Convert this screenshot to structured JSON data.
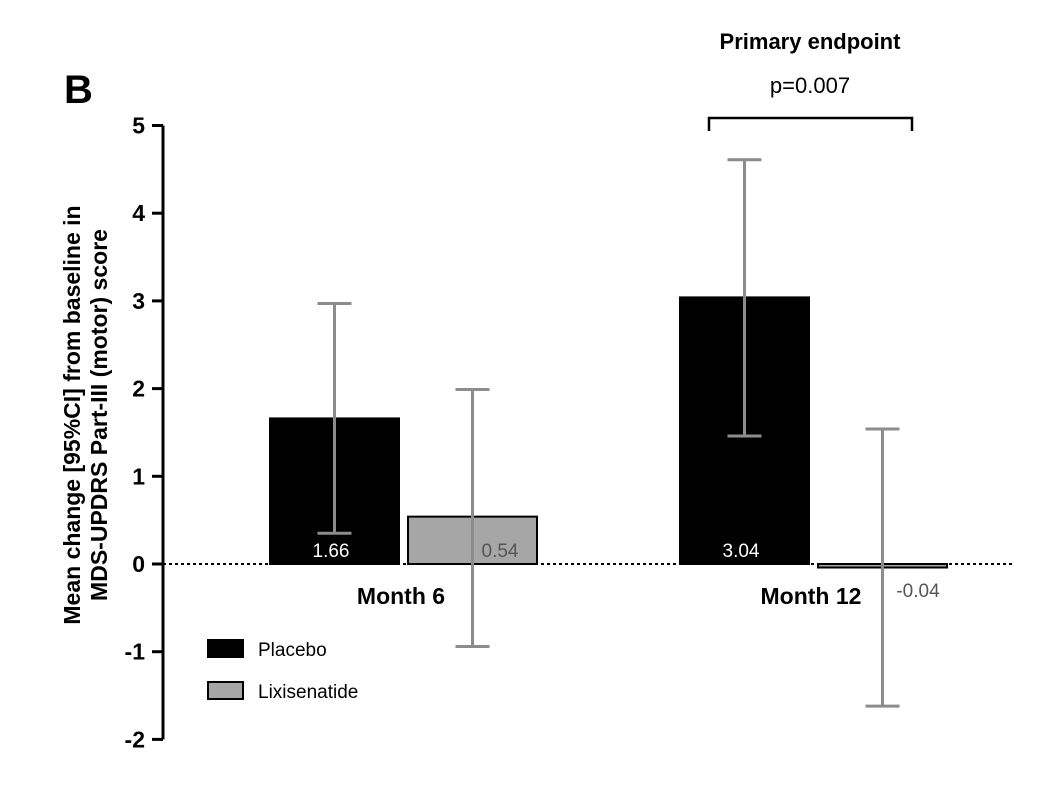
{
  "chart_data": {
    "type": "bar",
    "panel_label": "B",
    "ylabel_line1": "Mean change [95%CI] from baseline in",
    "ylabel_line2": "MDS-UPDRS Part-III (motor) score",
    "ylim": [
      -2,
      5
    ],
    "yticks": [
      5,
      4,
      3,
      2,
      1,
      0,
      -1,
      -2
    ],
    "categories": [
      "Month 6",
      "Month 12"
    ],
    "series": [
      {
        "name": "Placebo",
        "color": "#000000",
        "label_color": "#ffffff",
        "values": [
          1.66,
          3.04
        ],
        "labels": [
          "1.66",
          "3.04"
        ],
        "ci_low": [
          0.35,
          1.46
        ],
        "ci_high": [
          2.97,
          4.61
        ]
      },
      {
        "name": "Lixisenatide",
        "color": "#a6a6a6",
        "label_color": "#555555",
        "values": [
          0.54,
          -0.04
        ],
        "labels": [
          "0.54",
          "-0.04"
        ],
        "ci_low": [
          -0.94,
          -1.62
        ],
        "ci_high": [
          1.99,
          1.54
        ]
      }
    ],
    "annotation": {
      "title": "Primary endpoint",
      "pvalue": "p=0.007"
    },
    "legend_position": "bottom-left"
  }
}
